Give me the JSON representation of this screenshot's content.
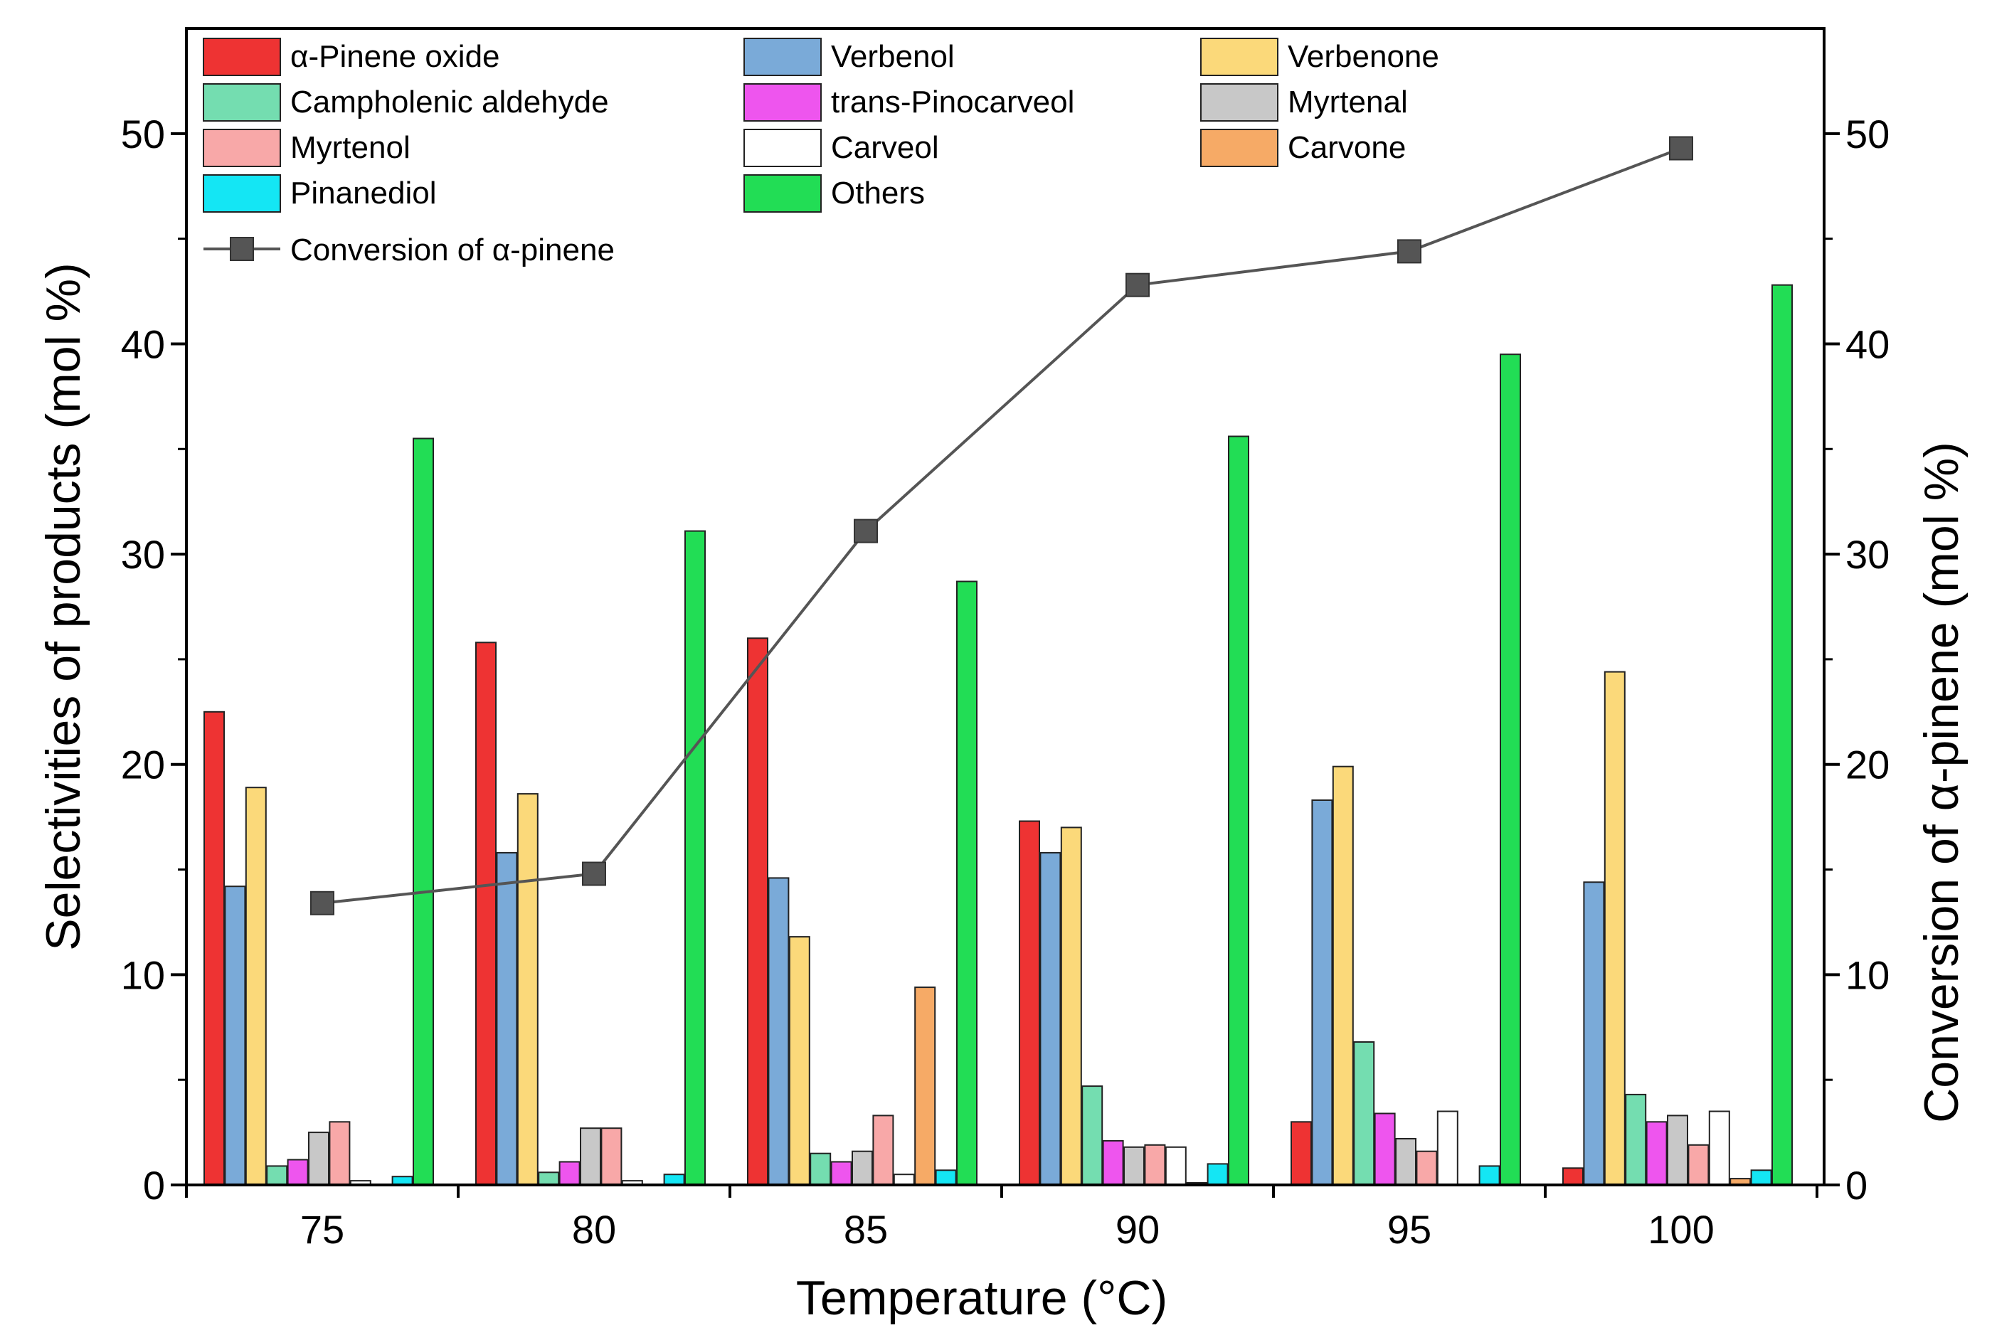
{
  "chart_data": {
    "type": "bar",
    "title": "",
    "xlabel": "Temperature (°C)",
    "ylabel": "Selectivities of products (mol %)",
    "y2label": "Conversion of α-pinene (mol %)",
    "ylim": [
      0,
      55
    ],
    "y2lim": [
      0,
      55
    ],
    "yticks": [
      0,
      10,
      20,
      30,
      40,
      50
    ],
    "categories": [
      "75",
      "80",
      "85",
      "90",
      "95",
      "100"
    ],
    "legend_position": "top-left",
    "grid": false,
    "series": [
      {
        "name": "α-Pinene oxide",
        "color": "#ee3333",
        "values": [
          22.5,
          25.8,
          26.0,
          17.3,
          3.0,
          0.8
        ]
      },
      {
        "name": "Verbenol",
        "color": "#7aaad8",
        "values": [
          14.2,
          15.8,
          14.6,
          15.8,
          18.3,
          14.4
        ]
      },
      {
        "name": "Verbenone",
        "color": "#fbd97a",
        "values": [
          18.9,
          18.6,
          11.8,
          17.0,
          19.9,
          24.4
        ]
      },
      {
        "name": "Campholenic aldehyde",
        "color": "#74ddb0",
        "values": [
          0.9,
          0.6,
          1.5,
          4.7,
          6.8,
          4.3
        ]
      },
      {
        "name": "trans-Pinocarveol",
        "color": "#ee55ee",
        "values": [
          1.2,
          1.1,
          1.1,
          2.1,
          3.4,
          3.0
        ]
      },
      {
        "name": "Myrtenal",
        "color": "#c8c8c8",
        "values": [
          2.5,
          2.7,
          1.6,
          1.8,
          2.2,
          3.3
        ]
      },
      {
        "name": "Myrtenol",
        "color": "#f8a8a8",
        "values": [
          3.0,
          2.7,
          3.3,
          1.9,
          1.6,
          1.9
        ]
      },
      {
        "name": "Carveol",
        "color": "#ffffff",
        "values": [
          0.2,
          0.2,
          0.5,
          1.8,
          3.5,
          3.5
        ]
      },
      {
        "name": "Carvone",
        "color": "#f6aa66",
        "values": [
          0.0,
          0.0,
          9.4,
          0.1,
          0.0,
          0.3
        ]
      },
      {
        "name": "Pinanediol",
        "color": "#14e6f4",
        "values": [
          0.4,
          0.5,
          0.7,
          1.0,
          0.9,
          0.7
        ]
      },
      {
        "name": "Others",
        "color": "#22dd55",
        "values": [
          35.5,
          31.1,
          28.7,
          35.6,
          39.5,
          42.8
        ]
      }
    ],
    "line_series": {
      "name": "Conversion of α-pinene",
      "axis": "right",
      "color": "#555555",
      "marker": "square",
      "values": [
        13.4,
        14.8,
        31.1,
        42.8,
        44.4,
        49.3
      ]
    }
  }
}
